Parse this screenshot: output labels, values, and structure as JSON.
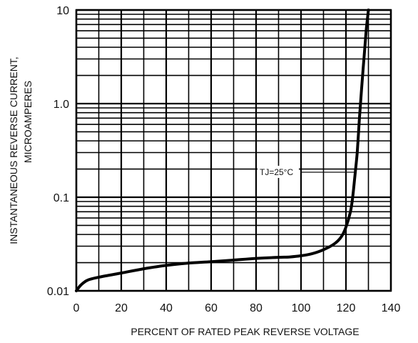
{
  "chart_data": {
    "type": "line",
    "title": "",
    "xlabel": "PERCENT OF RATED PEAK REVERSE VOLTAGE",
    "ylabel_lines": [
      "INSTANTANEOUS  REVERSE  CURRENT,",
      "MICROAMPERES"
    ],
    "xlim": [
      0,
      140
    ],
    "ylim": [
      0.01,
      10
    ],
    "y_scale": "log",
    "x_ticks": [
      0,
      20,
      40,
      60,
      80,
      100,
      120,
      140
    ],
    "x_tick_labels": [
      "0",
      "20",
      "40",
      "60",
      "80",
      "100",
      "120",
      "140"
    ],
    "y_ticks": [
      0.01,
      0.1,
      1.0,
      10
    ],
    "y_tick_labels": [
      "0.01",
      "0.1",
      "1.0",
      "10"
    ],
    "grid": true,
    "annotation": "TJ=25°C",
    "series": [
      {
        "x": [
          0,
          2,
          5,
          10,
          20,
          30,
          40,
          50,
          60,
          70,
          80,
          90,
          95,
          100,
          105,
          110,
          115,
          118,
          120,
          122,
          123,
          124,
          125,
          126,
          127,
          128,
          129,
          130
        ],
        "y": [
          0.01,
          0.0115,
          0.013,
          0.014,
          0.0155,
          0.0172,
          0.0187,
          0.0198,
          0.0205,
          0.0213,
          0.0222,
          0.0228,
          0.023,
          0.0237,
          0.025,
          0.0275,
          0.032,
          0.038,
          0.048,
          0.07,
          0.1,
          0.17,
          0.3,
          0.7,
          1.5,
          3.0,
          6.0,
          10.0
        ]
      }
    ]
  }
}
